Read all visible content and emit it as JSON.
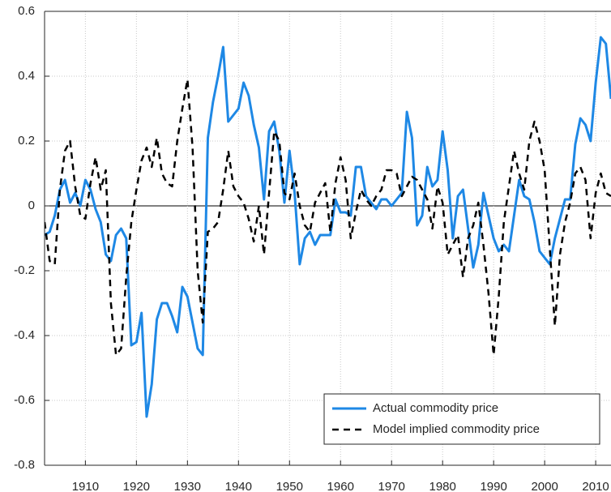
{
  "chart_data": {
    "type": "line",
    "x": [
      1902,
      1903,
      1904,
      1905,
      1906,
      1907,
      1908,
      1909,
      1910,
      1911,
      1912,
      1913,
      1914,
      1915,
      1916,
      1917,
      1918,
      1919,
      1920,
      1921,
      1922,
      1923,
      1924,
      1925,
      1926,
      1927,
      1928,
      1929,
      1930,
      1931,
      1932,
      1933,
      1934,
      1935,
      1936,
      1937,
      1938,
      1939,
      1940,
      1941,
      1942,
      1943,
      1944,
      1945,
      1946,
      1947,
      1948,
      1949,
      1950,
      1951,
      1952,
      1953,
      1954,
      1955,
      1956,
      1957,
      1958,
      1959,
      1960,
      1961,
      1962,
      1963,
      1964,
      1965,
      1966,
      1967,
      1968,
      1969,
      1970,
      1971,
      1972,
      1973,
      1974,
      1975,
      1976,
      1977,
      1978,
      1979,
      1980,
      1981,
      1982,
      1983,
      1984,
      1985,
      1986,
      1987,
      1988,
      1989,
      1990,
      1991,
      1992,
      1993,
      1994,
      1995,
      1996,
      1997,
      1998,
      1999,
      2000,
      2001,
      2002,
      2003,
      2004,
      2005,
      2006,
      2007,
      2008,
      2009,
      2010,
      2011,
      2012,
      2013
    ],
    "series": [
      {
        "name": "Actual commodity price",
        "color": "#1e88e5",
        "dash": false,
        "values": [
          -0.09,
          -0.08,
          -0.03,
          0.05,
          0.08,
          0.01,
          0.04,
          0.0,
          0.08,
          0.05,
          -0.01,
          -0.05,
          -0.15,
          -0.17,
          -0.09,
          -0.07,
          -0.1,
          -0.43,
          -0.42,
          -0.33,
          -0.65,
          -0.55,
          -0.35,
          -0.3,
          -0.3,
          -0.34,
          -0.39,
          -0.25,
          -0.28,
          -0.36,
          -0.44,
          -0.46,
          0.21,
          0.32,
          0.4,
          0.49,
          0.26,
          0.28,
          0.3,
          0.38,
          0.34,
          0.25,
          0.18,
          0.02,
          0.23,
          0.26,
          0.17,
          0.01,
          0.17,
          0.04,
          -0.18,
          -0.1,
          -0.08,
          -0.12,
          -0.09,
          -0.09,
          -0.09,
          0.02,
          -0.02,
          -0.02,
          -0.03,
          0.12,
          0.12,
          0.03,
          0.01,
          -0.01,
          0.02,
          0.02,
          0.0,
          0.02,
          0.04,
          0.29,
          0.21,
          -0.06,
          -0.03,
          0.12,
          0.06,
          0.08,
          0.23,
          0.11,
          -0.1,
          0.03,
          0.05,
          -0.07,
          -0.19,
          -0.12,
          0.04,
          -0.03,
          -0.1,
          -0.14,
          -0.12,
          -0.14,
          -0.03,
          0.08,
          0.03,
          0.02,
          -0.05,
          -0.14,
          -0.16,
          -0.18,
          -0.1,
          -0.04,
          0.02,
          0.02,
          0.19,
          0.27,
          0.25,
          0.2,
          0.38,
          0.52,
          0.5,
          0.33
        ]
      },
      {
        "name": "Model implied commodity price",
        "color": "#000000",
        "dash": true,
        "values": [
          -0.05,
          -0.17,
          -0.18,
          0.05,
          0.17,
          0.2,
          0.06,
          -0.03,
          -0.04,
          0.07,
          0.15,
          0.05,
          0.11,
          -0.3,
          -0.46,
          -0.44,
          -0.22,
          -0.05,
          0.05,
          0.14,
          0.18,
          0.12,
          0.21,
          0.1,
          0.07,
          0.06,
          0.2,
          0.3,
          0.39,
          0.18,
          -0.2,
          -0.36,
          -0.08,
          -0.07,
          -0.05,
          0.05,
          0.17,
          0.06,
          0.03,
          0.01,
          -0.04,
          -0.11,
          0.0,
          -0.15,
          0.04,
          0.23,
          0.2,
          0.04,
          0.02,
          0.1,
          0.0,
          -0.06,
          -0.08,
          0.01,
          0.04,
          0.07,
          -0.08,
          0.07,
          0.15,
          0.08,
          -0.1,
          -0.02,
          0.05,
          0.02,
          0.0,
          0.03,
          0.05,
          0.11,
          0.11,
          0.1,
          0.03,
          0.06,
          0.09,
          0.08,
          0.05,
          0.02,
          -0.07,
          0.06,
          0.01,
          -0.15,
          -0.12,
          -0.09,
          -0.22,
          -0.1,
          -0.06,
          0.01,
          -0.12,
          -0.27,
          -0.46,
          -0.28,
          -0.05,
          0.06,
          0.17,
          0.1,
          0.05,
          0.2,
          0.26,
          0.2,
          0.11,
          -0.13,
          -0.37,
          -0.15,
          -0.05,
          0.01,
          0.1,
          0.12,
          0.08,
          -0.1,
          0.04,
          0.1,
          0.04,
          0.03
        ]
      }
    ],
    "xlim": [
      1902,
      2013
    ],
    "xticks": [
      1910,
      1920,
      1930,
      1940,
      1950,
      1960,
      1970,
      1980,
      1990,
      2000,
      2010
    ],
    "ylim": [
      -0.8,
      0.6
    ],
    "yticks": [
      -0.8,
      -0.6,
      -0.4,
      -0.2,
      0,
      0.2,
      0.4,
      0.6
    ],
    "grid": true,
    "legend": "lower right"
  }
}
